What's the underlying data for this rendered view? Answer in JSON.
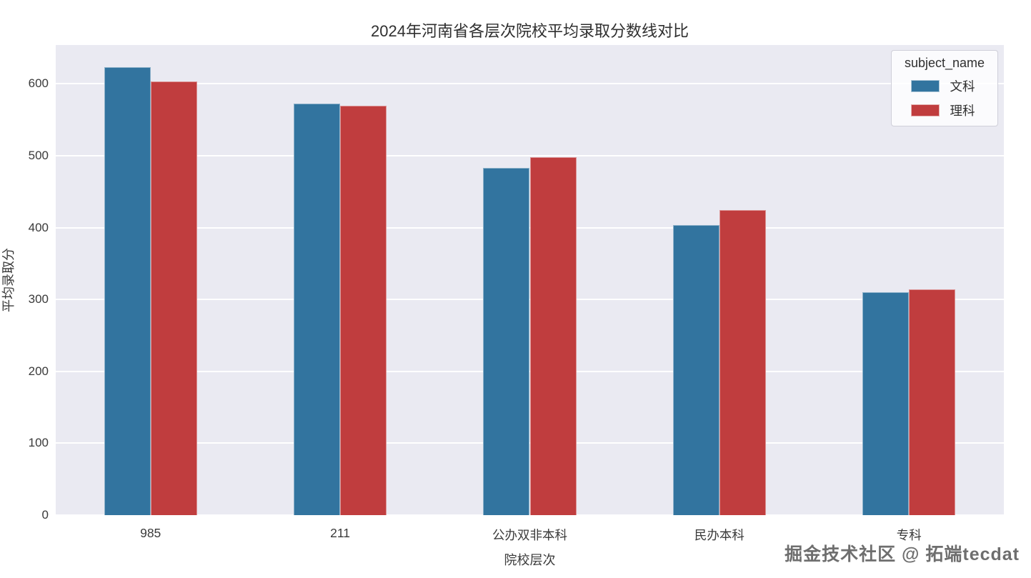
{
  "watermark": "掘金技术社区 @ 拓端tecdat",
  "colors": {
    "axes_background": "#eaeaf2",
    "gridline": "#ffffff",
    "wenke_blue": "#32749f",
    "like_red": "#c03d3e",
    "text": "#3a3a3a"
  },
  "chart_data": {
    "type": "bar",
    "title": "2024年河南省各层次院校平均录取分数线对比",
    "xlabel": "院校层次",
    "ylabel": "平均录取分",
    "categories": [
      "985",
      "211",
      "公办双非本科",
      "民办本科",
      "专科"
    ],
    "series": [
      {
        "name": "文科",
        "color": "#32749f",
        "values": [
          623,
          573,
          483,
          404,
          310
        ]
      },
      {
        "name": "理科",
        "color": "#c03d3e",
        "values": [
          603,
          570,
          498,
          424,
          314
        ]
      }
    ],
    "yticks": [
      0,
      100,
      200,
      300,
      400,
      500,
      600
    ],
    "ylim": [
      0,
      654
    ],
    "grid": true,
    "legend_title": "subject_name",
    "legend_position": "upper right"
  }
}
